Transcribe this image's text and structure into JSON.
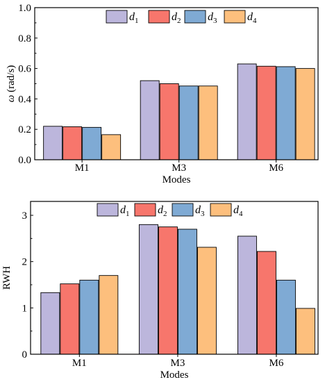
{
  "colors": {
    "d1": "#bcb6dc",
    "d2": "#f7766c",
    "d3": "#7faad4",
    "d4": "#fdbf7d"
  },
  "chart_data": [
    {
      "type": "bar",
      "categories": [
        "M1",
        "M3",
        "M6"
      ],
      "xlabel": "Modes",
      "ylabel": "ω (rad/s)",
      "ylim": [
        0,
        1.0
      ],
      "yticks": [
        "0.0",
        "0.2",
        "0.4",
        "0.6",
        "0.8",
        "1.0"
      ],
      "legend_position": "top-center",
      "series": [
        {
          "name": "d",
          "sub": "1",
          "values": [
            0.22,
            0.52,
            0.63
          ]
        },
        {
          "name": "d",
          "sub": "2",
          "values": [
            0.217,
            0.5,
            0.615
          ]
        },
        {
          "name": "d",
          "sub": "3",
          "values": [
            0.213,
            0.485,
            0.612
          ]
        },
        {
          "name": "d",
          "sub": "4",
          "values": [
            0.165,
            0.485,
            0.6
          ]
        }
      ]
    },
    {
      "type": "bar",
      "categories": [
        "M1",
        "M3",
        "M6"
      ],
      "xlabel": "Modes",
      "ylabel": "RWH",
      "ylim": [
        0,
        3.3
      ],
      "yticks": [
        "0",
        "1",
        "2",
        "3"
      ],
      "legend_position": "top-center",
      "series": [
        {
          "name": "d",
          "sub": "1",
          "values": [
            1.33,
            2.8,
            2.55
          ]
        },
        {
          "name": "d",
          "sub": "2",
          "values": [
            1.52,
            2.75,
            2.22
          ]
        },
        {
          "name": "d",
          "sub": "3",
          "values": [
            1.6,
            2.7,
            1.6
          ]
        },
        {
          "name": "d",
          "sub": "4",
          "values": [
            1.7,
            2.31,
            0.99
          ]
        }
      ]
    }
  ]
}
